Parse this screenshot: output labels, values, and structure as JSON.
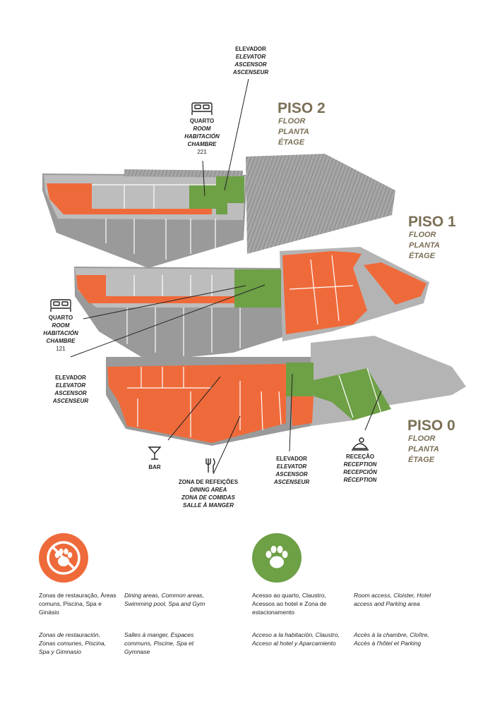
{
  "floors": [
    {
      "title": "PISO 2",
      "sub": [
        "FLOOR",
        "PLANTA",
        "ÉTAGE"
      ]
    },
    {
      "title": "PISO 1",
      "sub": [
        "FLOOR",
        "PLANTA",
        "ÉTAGE"
      ]
    },
    {
      "title": "PISO 0",
      "sub": [
        "FLOOR",
        "PLANTA",
        "ÉTAGE"
      ]
    }
  ],
  "labels": {
    "elevator_top": [
      "ELEVADOR",
      "ELEVATOR",
      "ASCENSOR",
      "ASCENSEUR"
    ],
    "room_221": [
      "QUARTO",
      "ROOM",
      "HABITACIÓN",
      "CHAMBRE",
      "221"
    ],
    "room_121": [
      "QUARTO",
      "ROOM",
      "HABITACIÓN",
      "CHAMBRE",
      "121"
    ],
    "elevator_mid": [
      "ELEVADOR",
      "ELEVATOR",
      "ASCENSOR",
      "ASCENSEUR"
    ],
    "bar": "BAR",
    "dining": [
      "ZONA DE REFEIÇÕES",
      "DINING AREA",
      "ZONA DE COMIDAS",
      "SALLE À MANGER"
    ],
    "elevator_bottom": [
      "ELEVADOR",
      "ELEVATOR",
      "ASCENSOR",
      "ASCENSEUR"
    ],
    "reception": [
      "RECEÇÃO",
      "RECEPTION",
      "RECEPCIÓN",
      "RÉCEPTION"
    ]
  },
  "legend": {
    "no_pets": {
      "color": "#ef6a3a",
      "pt": "Zonas de restauração, Áreas comuns, Piscina, Spa e Ginásio",
      "en": "Dining areas, Common areas, Swimming pool, Spa and Gym",
      "es": "Zonas de restauración, Zonas comunes, Piscina, Spa y Gimnasio",
      "fr": "Salles à manger, Espaces communs, Piscine, Spa et Gymnase"
    },
    "pets": {
      "color": "#6ea046",
      "pt": "Acesso ao quarto, Claustro, Acessos ao hotel e Zona de estacionamento",
      "en": "Room access, Cloister, Hotel access and Parking area",
      "es": "Acceso a la habitación, Claustro, Acceso al hotel y Aparcamiento",
      "fr": "Accès à la chambre, Cloître, Accès à l'hôtel et Parking"
    }
  },
  "colors": {
    "orange": "#ef6a3a",
    "green": "#6ea046",
    "grey": "#b4b4b4",
    "dark_grey": "#8c8c8c",
    "title": "#7b7056"
  }
}
